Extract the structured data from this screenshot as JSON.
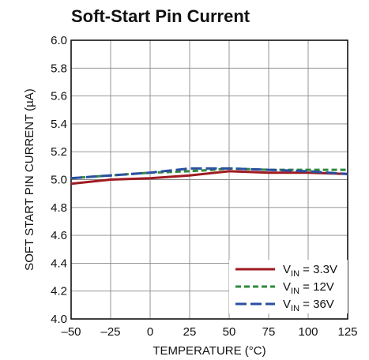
{
  "chart_data": {
    "type": "line",
    "title": "Soft-Start Pin Current",
    "xlabel": "TEMPERATURE (°C)",
    "ylabel": "SOFT START PIN CURRENT (µA)",
    "xlim": [
      -50,
      125
    ],
    "ylim": [
      4.0,
      6.0
    ],
    "x_ticks": [
      "–50",
      "–25",
      "0",
      "25",
      "50",
      "75",
      "100",
      "125"
    ],
    "x_tick_values": [
      -50,
      -25,
      0,
      25,
      50,
      75,
      100,
      125
    ],
    "y_ticks": [
      "4.0",
      "4.2",
      "4.4",
      "4.6",
      "4.8",
      "5.0",
      "5.2",
      "5.4",
      "5.6",
      "5.8",
      "6.0"
    ],
    "y_tick_values": [
      4.0,
      4.2,
      4.4,
      4.6,
      4.8,
      5.0,
      5.2,
      5.4,
      5.6,
      5.8,
      6.0
    ],
    "grid": true,
    "legend_position": "bottom-right",
    "series": [
      {
        "name_base": "V",
        "name_sub": "IN",
        "name_tail": " = 3.3V",
        "color": "#9e1b22",
        "dash": "solid",
        "x": [
          -50,
          -25,
          0,
          25,
          50,
          75,
          100,
          125
        ],
        "y": [
          4.97,
          5.0,
          5.01,
          5.03,
          5.06,
          5.05,
          5.05,
          5.04
        ]
      },
      {
        "name_base": "V",
        "name_sub": "IN",
        "name_tail": " = 12V",
        "color": "#2f8a3c",
        "dash": "dashed",
        "x": [
          -50,
          -25,
          0,
          25,
          40,
          50,
          75,
          100,
          125
        ],
        "y": [
          5.01,
          5.03,
          5.05,
          5.06,
          5.07,
          5.08,
          5.07,
          5.07,
          5.07
        ]
      },
      {
        "name_base": "V",
        "name_sub": "IN",
        "name_tail": " = 36V",
        "color": "#2b4fa0",
        "dash": "dashed",
        "x": [
          -50,
          -25,
          0,
          25,
          40,
          50,
          75,
          100,
          125
        ],
        "y": [
          5.01,
          5.03,
          5.05,
          5.08,
          5.08,
          5.08,
          5.07,
          5.06,
          5.04
        ]
      }
    ]
  }
}
